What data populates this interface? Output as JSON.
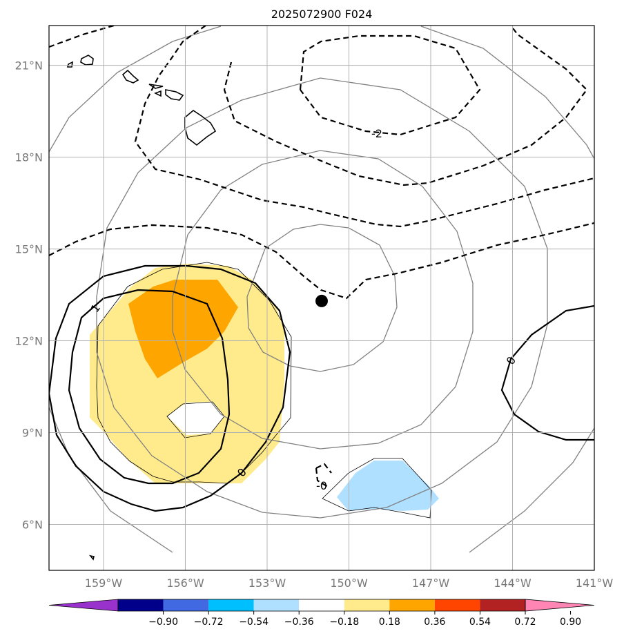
{
  "chart_data": {
    "type": "heatmap",
    "title": "2025072900 F024",
    "x_ticks": [
      "159°W",
      "156°W",
      "153°W",
      "150°W",
      "147°W",
      "144°W",
      "141°W"
    ],
    "y_ticks": [
      "21°N",
      "18°N",
      "15°N",
      "12°N",
      "9°N",
      "6°N"
    ],
    "lon_range": [
      -161.0,
      -141.0
    ],
    "lat_range": [
      4.5,
      22.3
    ],
    "grid": true,
    "center_marker": {
      "lon": -151.0,
      "lat": 13.3
    },
    "colorbar": {
      "position": "bottom",
      "extend": "both",
      "labels": [
        "−0.90",
        "−0.72",
        "−0.54",
        "−0.36",
        "−0.18",
        "0.18",
        "0.36",
        "0.54",
        "0.72",
        "0.90"
      ],
      "colors": [
        "#9932cc",
        "#00008b",
        "#4169e1",
        "#00bfff",
        "#b0e0ff",
        "#ffffff",
        "#ffeb8c",
        "#ffa500",
        "#ff4500",
        "#b22222",
        "#ff85b4"
      ]
    },
    "shaded_regions": [
      {
        "level": "0.18 to 0.36",
        "color": "#ffeb8c"
      },
      {
        "level": "0.36 to 0.54",
        "color": "#ffa500"
      },
      {
        "level": "-0.36 to -0.18",
        "color": "#b0e0ff"
      }
    ],
    "contour_labels": [
      "-2",
      "1",
      "0",
      "-0",
      "0"
    ],
    "range_rings": "gray concentric rings around center marker",
    "coastlines": "Hawaiian Islands"
  }
}
